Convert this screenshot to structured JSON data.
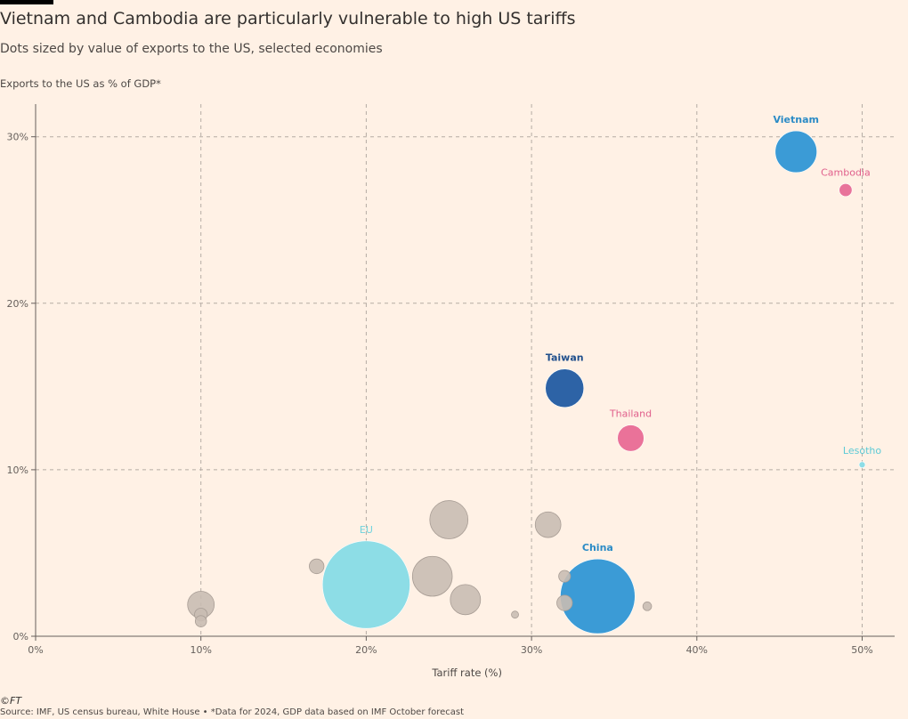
{
  "title": "Vietnam and Cambodia are particularly vulnerable to high US tariffs",
  "subtitle": "Dots sized by value of exports to the US, selected economies",
  "footer": {
    "copyright": "©FT",
    "source": "Source: IMF, US census bureau, White House • *Data for 2024, GDP data based on IMF October forecast"
  },
  "colors": {
    "background": "#fff1e5",
    "grid": "#b5aca4",
    "axis": "#66605c",
    "grey_bubble": "#c9bcb3",
    "vietnam": "#3b9bd6",
    "cambodia": "#e8739a",
    "taiwan": "#2d63a6",
    "thailand": "#ea7299",
    "lesotho": "#8ddde6",
    "eu": "#8ddde6",
    "china": "#3b9bd6"
  },
  "chart_data": {
    "type": "scatter",
    "subtype": "bubble",
    "xlabel": "Tariff rate (%)",
    "ylabel": "Exports to the US as % of GDP*",
    "xlim": [
      0,
      52
    ],
    "ylim": [
      0,
      32
    ],
    "x_ticks": [
      0,
      10,
      20,
      30,
      40,
      50
    ],
    "x_tick_labels": [
      "0%",
      "10%",
      "20%",
      "30%",
      "40%",
      "50%"
    ],
    "y_ticks": [
      0,
      10,
      20,
      30
    ],
    "y_tick_labels": [
      "0%",
      "10%",
      "20%",
      "30%"
    ],
    "grid": true,
    "size_legend": "none",
    "points": [
      {
        "name": "EU",
        "x": 20,
        "y": 3.1,
        "size": 605,
        "color": "#8ddde6",
        "label_color": "#6fd3de",
        "bold": false
      },
      {
        "name": "China",
        "x": 34,
        "y": 2.4,
        "size": 440,
        "color": "#3b9bd6",
        "label_color": "#2b8bc6",
        "bold": true
      },
      {
        "name": "Vietnam",
        "x": 46,
        "y": 29.1,
        "size": 137,
        "color": "#3b9bd6",
        "label_color": "#2b8bc6",
        "bold": true
      },
      {
        "name": "Taiwan",
        "x": 32,
        "y": 14.9,
        "size": 116,
        "color": "#2d63a6",
        "label_color": "#1f4f8c",
        "bold": true
      },
      {
        "name": "Thailand",
        "x": 36,
        "y": 11.9,
        "size": 55,
        "color": "#ea7299",
        "label_color": "#e0608c",
        "bold": false
      },
      {
        "name": "Cambodia",
        "x": 49,
        "y": 26.8,
        "size": 13,
        "color": "#e8739a",
        "label_color": "#e0608c",
        "bold": false
      },
      {
        "name": "Lesotho",
        "x": 50,
        "y": 10.3,
        "size": 0.2,
        "color": "#8ddde6",
        "label_color": "#5ccad6",
        "bold": false
      },
      {
        "name": "",
        "x": 25,
        "y": 7.0,
        "size": 115,
        "color": "#c9bcb3"
      },
      {
        "name": "",
        "x": 24,
        "y": 3.6,
        "size": 125,
        "color": "#c9bcb3"
      },
      {
        "name": "",
        "x": 26,
        "y": 2.2,
        "size": 72,
        "color": "#c9bcb3"
      },
      {
        "name": "",
        "x": 31,
        "y": 6.7,
        "size": 52,
        "color": "#c9bcb3"
      },
      {
        "name": "",
        "x": 10,
        "y": 1.9,
        "size": 56,
        "color": "#c9bcb3"
      },
      {
        "name": "",
        "x": 10,
        "y": 1.3,
        "size": 13,
        "color": "#c9bcb3"
      },
      {
        "name": "",
        "x": 10,
        "y": 0.9,
        "size": 10,
        "color": "#c9bcb3"
      },
      {
        "name": "",
        "x": 17,
        "y": 4.2,
        "size": 17,
        "color": "#c9bcb3"
      },
      {
        "name": "",
        "x": 29,
        "y": 1.3,
        "size": 4,
        "color": "#c9bcb3"
      },
      {
        "name": "",
        "x": 32,
        "y": 3.6,
        "size": 11,
        "color": "#c9bcb3"
      },
      {
        "name": "",
        "x": 32,
        "y": 2.0,
        "size": 19,
        "color": "#c9bcb3"
      },
      {
        "name": "",
        "x": 37,
        "y": 1.8,
        "size": 6,
        "color": "#c9bcb3"
      }
    ]
  }
}
